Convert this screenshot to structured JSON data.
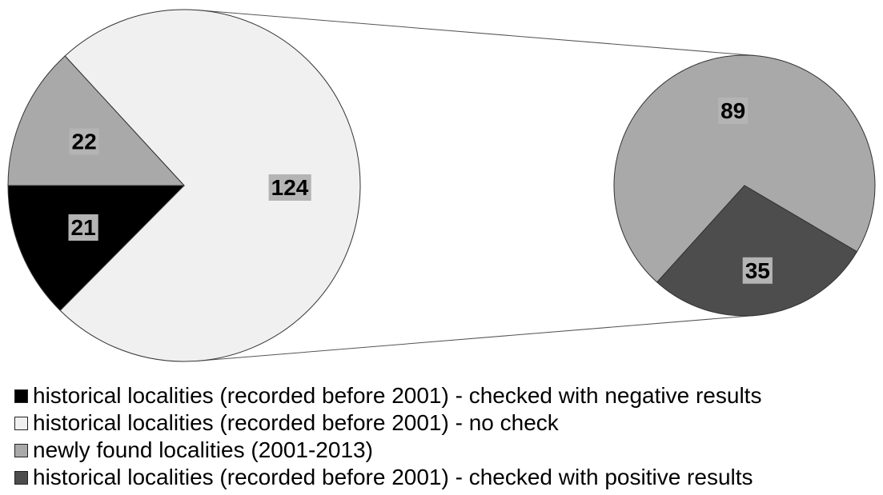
{
  "chart_data": {
    "type": "pie",
    "pies": [
      {
        "slices": [
          {
            "series": 0,
            "value": 21,
            "label": "21"
          },
          {
            "series": 1,
            "value": 124,
            "label": "124"
          },
          {
            "series": 2,
            "value": 22,
            "label": "22"
          }
        ]
      },
      {
        "slices": [
          {
            "series": 2,
            "value": 89,
            "label": "89"
          },
          {
            "series": 3,
            "value": 35,
            "label": "35"
          }
        ]
      }
    ],
    "exploded_slice": {
      "pie": 0,
      "series": 1,
      "into_pie": 1
    },
    "legend": {
      "placement": "bottom",
      "entries": [
        {
          "label": "historical localities (recorded before 2001) - checked with negative results",
          "color": "#000000"
        },
        {
          "label": "historical localities (recorded before 2001) - no check",
          "color": "#f0f0f0"
        },
        {
          "label": "newly found localities (2001-2013)",
          "color": "#a9a9a9"
        },
        {
          "label": "historical localities (recorded before 2001) - checked with positive results",
          "color": "#4d4d4d"
        }
      ]
    },
    "label_box_color": "#b4b4b4"
  }
}
